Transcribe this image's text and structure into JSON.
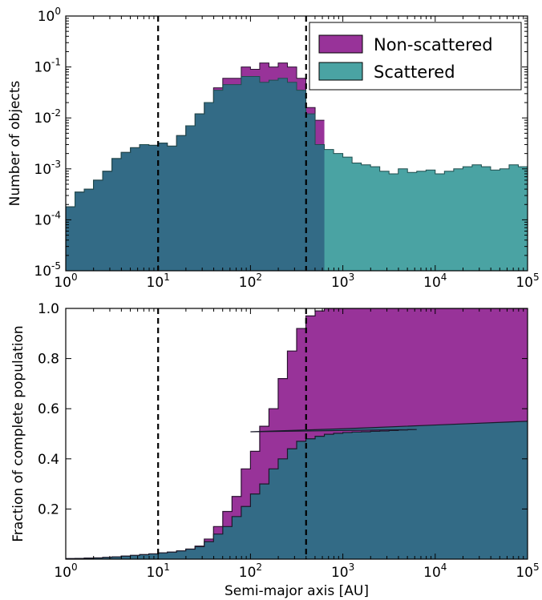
{
  "colors": {
    "non_scattered": "#983399",
    "scattered": "#4aa3a3",
    "overlap": "#336b86"
  },
  "chart_data": [
    {
      "type": "area",
      "subtype": "step-histogram",
      "ylabel": "Number of objects",
      "xlabel": "",
      "xscale": "log",
      "yscale": "log",
      "xlim": [
        1,
        100000
      ],
      "ylim": [
        1e-05,
        1
      ],
      "x_ticks": [
        "10^0",
        "10^1",
        "10^2",
        "10^3",
        "10^4",
        "10^5"
      ],
      "y_ticks": [
        "10^-5",
        "10^-4",
        "10^-3",
        "10^-2",
        "10^-1",
        "10^0"
      ],
      "vlines": [
        10,
        400
      ],
      "legend": {
        "position": "top-right",
        "entries": [
          "Non-scattered",
          "Scattered"
        ]
      },
      "bin_log10_start": 0,
      "bin_log10_width": 0.1,
      "series": [
        {
          "name": "Non-scattered",
          "values": [
            0.00018,
            0.00035,
            0.0004,
            0.0006,
            0.0009,
            0.0016,
            0.0021,
            0.0026,
            0.003,
            0.0029,
            0.0032,
            0.0028,
            0.0045,
            0.007,
            0.012,
            0.02,
            0.039,
            0.06,
            0.06,
            0.1,
            0.09,
            0.12,
            0.1,
            0.12,
            0.1,
            0.06,
            0.016,
            0.009
          ]
        },
        {
          "name": "Scattered",
          "values": [
            0.00018,
            0.00035,
            0.0004,
            0.0006,
            0.0009,
            0.0016,
            0.0021,
            0.0026,
            0.003,
            0.0029,
            0.0032,
            0.0028,
            0.0045,
            0.007,
            0.012,
            0.02,
            0.035,
            0.045,
            0.045,
            0.065,
            0.065,
            0.05,
            0.055,
            0.06,
            0.05,
            0.035,
            0.012,
            0.003,
            0.0024,
            0.002,
            0.0017,
            0.0013,
            0.0012,
            0.0011,
            0.0009,
            0.0008,
            0.001,
            0.00085,
            0.0009,
            0.00095,
            0.0008,
            0.0009,
            0.001,
            0.0011,
            0.0012,
            0.0011,
            0.00095,
            0.001,
            0.0012,
            0.0011,
            0.0012,
            0.0011,
            0.0011,
            0.0011,
            0.00085,
            0.00085,
            0.0011,
            0.00095,
            0.001,
            0.001,
            0.0011,
            0.00095,
            0.001,
            0.0012,
            0.0011,
            0.00095,
            0.0011,
            0.0011,
            0.0009,
            0.00085,
            0.00095,
            0.0009,
            0.0011,
            0.0016,
            0.0013,
            0.0011,
            0.0011,
            0.00095,
            0.00085,
            0.0008,
            0.00085,
            0.0007,
            0.0006,
            0.00055,
            0.00045,
            0.00038,
            0.00045,
            0.0004,
            0.0005,
            0.0004,
            0.0004,
            0.0003,
            0.00032,
            0.00031,
            0.0003,
            0.00028,
            0.00022
          ]
        }
      ]
    },
    {
      "type": "area",
      "subtype": "cumulative-step",
      "ylabel": "Fraction of complete population",
      "xlabel": "Semi-major axis [AU]",
      "xscale": "log",
      "xlim": [
        1,
        100000
      ],
      "ylim": [
        0,
        1
      ],
      "x_ticks": [
        "10^0",
        "10^1",
        "10^2",
        "10^3",
        "10^4",
        "10^5"
      ],
      "y_ticks": [
        "0.2",
        "0.4",
        "0.6",
        "0.8",
        "1.0"
      ],
      "vlines": [
        10,
        400
      ],
      "bin_log10_start": 0,
      "bin_log10_width": 0.1,
      "series": [
        {
          "name": "Non-scattered",
          "values": [
            0.002,
            0.003,
            0.004,
            0.005,
            0.007,
            0.009,
            0.012,
            0.015,
            0.018,
            0.021,
            0.025,
            0.028,
            0.033,
            0.04,
            0.052,
            0.08,
            0.13,
            0.19,
            0.25,
            0.36,
            0.43,
            0.53,
            0.6,
            0.72,
            0.83,
            0.92,
            0.97,
            0.99,
            1.0
          ]
        },
        {
          "name": "Scattered",
          "values": [
            0.002,
            0.003,
            0.004,
            0.005,
            0.007,
            0.009,
            0.012,
            0.015,
            0.018,
            0.021,
            0.025,
            0.028,
            0.033,
            0.04,
            0.05,
            0.07,
            0.1,
            0.13,
            0.17,
            0.21,
            0.26,
            0.3,
            0.36,
            0.4,
            0.44,
            0.47,
            0.48,
            0.49,
            0.498,
            0.502,
            0.505,
            0.507,
            0.508,
            0.51,
            0.511,
            0.513,
            0.515,
            0.517
          ]
        },
        {
          "name": "Scattered (smooth tail)",
          "points": [
            [
              100,
              0.508
            ],
            [
              1000,
              0.52
            ],
            [
              10000,
              0.535
            ],
            [
              100000,
              0.55
            ]
          ]
        }
      ]
    }
  ]
}
